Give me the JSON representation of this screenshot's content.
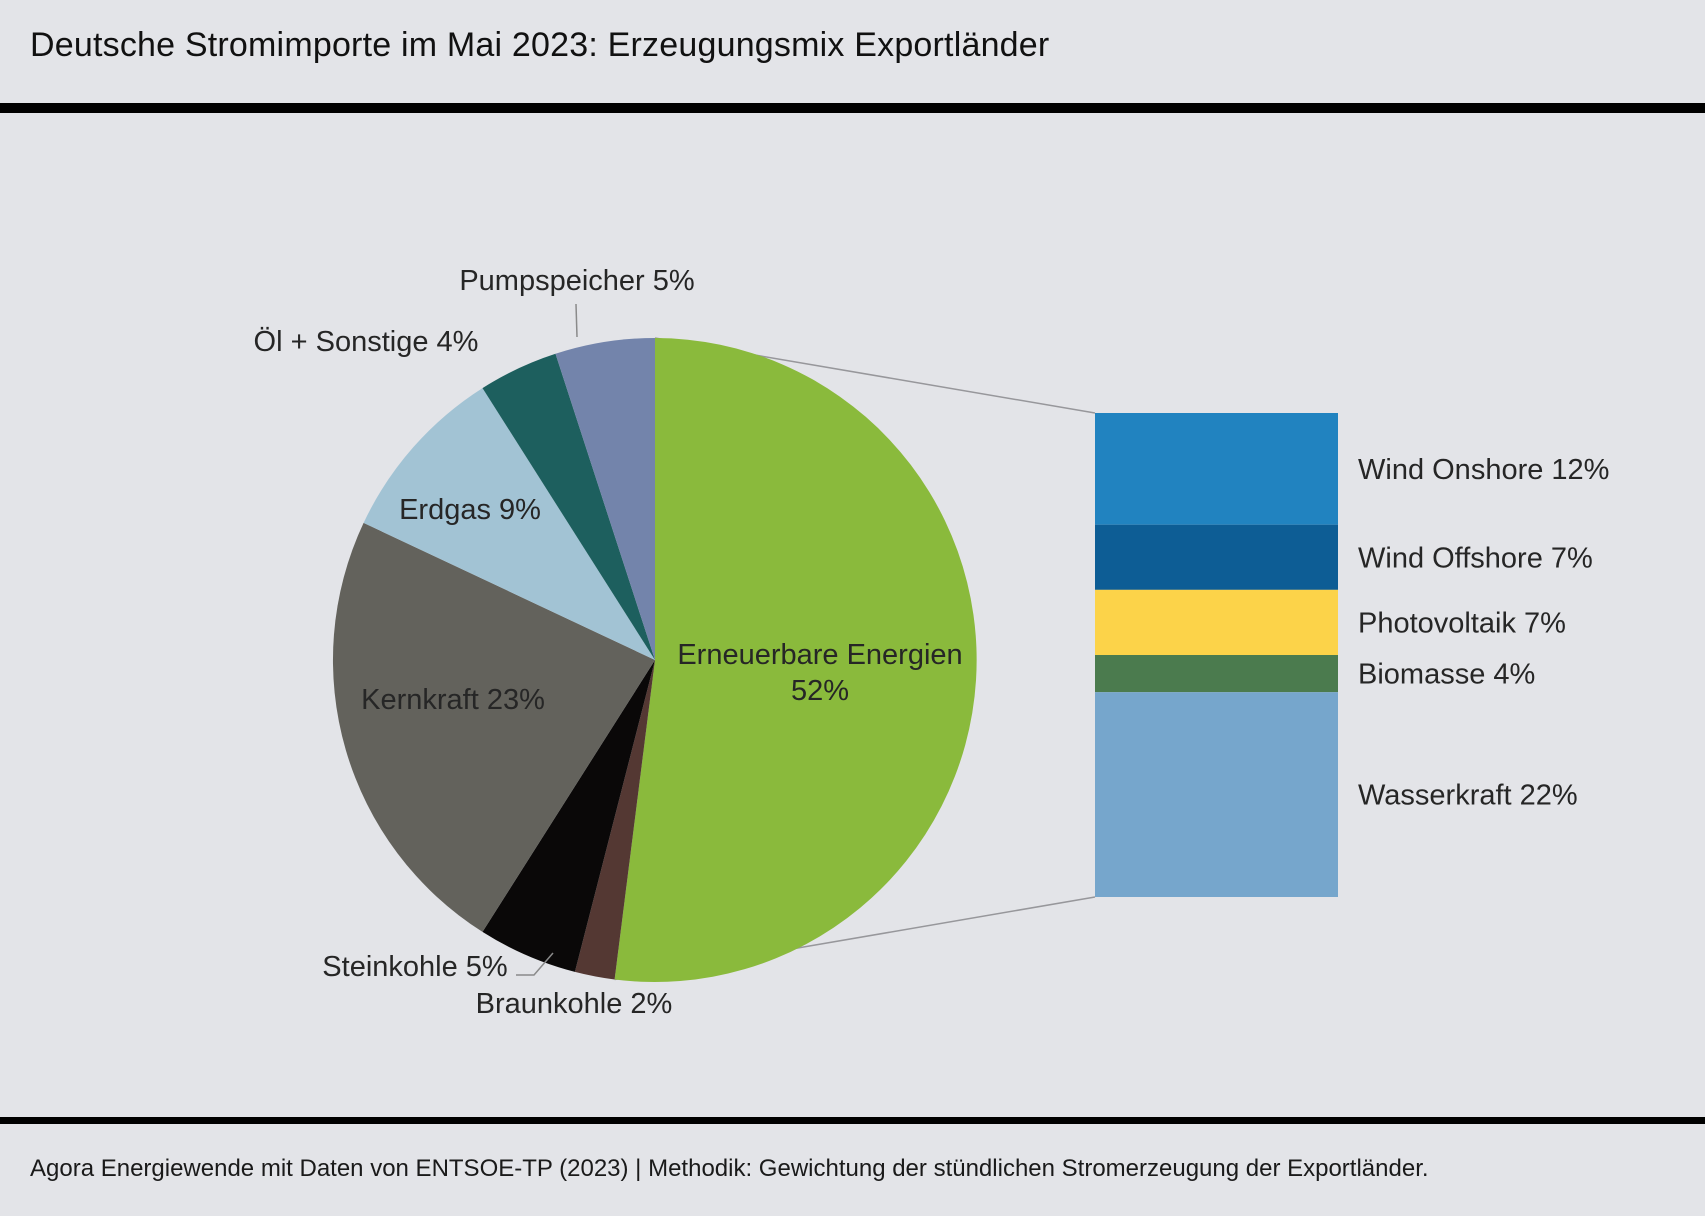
{
  "header": {
    "title": "Deutsche Stromimporte im Mai 2023: Erzeugungsmix Exportländer"
  },
  "footer": {
    "source": "Agora Energiewende mit Daten von ENTSOE-TP (2023) | Methodik: Gewichtung der stündlichen Stromerzeugung der Exportländer."
  },
  "colors": {
    "background": "#e3e4e8",
    "rule": "#000000",
    "connector": "#97979b",
    "leader": "#8a8a8a",
    "label_text": "#262626"
  },
  "chart_data": {
    "type": "pie",
    "title": "Deutsche Stromimporte im Mai 2023: Erzeugungsmix Exportländer",
    "unit": "%",
    "start_angle_deg": 0,
    "direction": "clockwise",
    "slices": [
      {
        "id": "erneuerbare",
        "label": "Erneuerbare Energien",
        "value": 52,
        "display": "Erneuerbare Energien 52%",
        "label_lines": [
          "Erneuerbare Energien",
          "52%"
        ],
        "color": "#8aba3c"
      },
      {
        "id": "braunkohle",
        "label": "Braunkohle",
        "value": 2,
        "display": "Braunkohle 2%",
        "color": "#543833"
      },
      {
        "id": "steinkohle",
        "label": "Steinkohle",
        "value": 5,
        "display": "Steinkohle 5%",
        "color": "#0a0808"
      },
      {
        "id": "kernkraft",
        "label": "Kernkraft",
        "value": 23,
        "display": "Kernkraft 23%",
        "color": "#63625c"
      },
      {
        "id": "erdgas",
        "label": "Erdgas",
        "value": 9,
        "display": "Erdgas 9%",
        "color": "#a2c3d4"
      },
      {
        "id": "oel-sonstige",
        "label": "Öl + Sonstige",
        "value": 4,
        "display": "Öl + Sonstige  4%",
        "color": "#1d5f5e"
      },
      {
        "id": "pumpspeicher",
        "label": "Pumpspeicher",
        "value": 5,
        "display": "Pumpspeicher 5%",
        "color": "#7384ab"
      }
    ],
    "breakdown": {
      "of": "erneuerbare",
      "total": 52,
      "type": "stacked-bar",
      "segments": [
        {
          "id": "wind-onshore",
          "label": "Wind Onshore",
          "value": 12,
          "display": "Wind Onshore 12%",
          "color": "#2183c0"
        },
        {
          "id": "wind-offshore",
          "label": "Wind Offshore",
          "value": 7,
          "display": "Wind Offshore 7%",
          "color": "#0d5d95"
        },
        {
          "id": "photovoltaik",
          "label": "Photovoltaik",
          "value": 7,
          "display": "Photovoltaik 7%",
          "color": "#fcd349"
        },
        {
          "id": "biomasse",
          "label": "Biomasse",
          "value": 4,
          "display": "Biomasse 4%",
          "color": "#4b7b4e"
        },
        {
          "id": "wasserkraft",
          "label": "Wasserkraft",
          "value": 22,
          "display": "Wasserkraft 22%",
          "color": "#76a6cc"
        }
      ]
    }
  }
}
